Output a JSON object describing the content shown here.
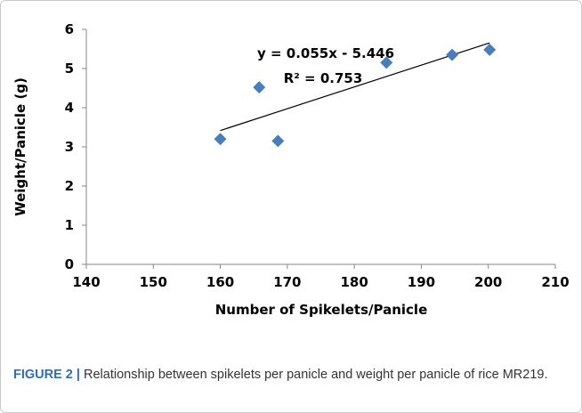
{
  "chart_data": {
    "type": "scatter",
    "x_label": "Number of Spikelets/Panicle",
    "y_label": "Weight/Panicle (g)",
    "x": [
      160,
      165.8,
      168.6,
      184.8,
      194.6,
      200.2
    ],
    "values": [
      3.2,
      4.52,
      3.15,
      5.15,
      5.35,
      5.48
    ],
    "color": "#4a7ebb",
    "trendline": true,
    "annotations": [
      "y = 0.055x - 5.446",
      "R² = 0.753"
    ],
    "xlim": [
      140,
      210
    ],
    "xticks": [
      140,
      150,
      160,
      170,
      180,
      190,
      200,
      210
    ],
    "ylim": [
      0,
      6
    ],
    "yticks": [
      0,
      1,
      2,
      3,
      4,
      5,
      6
    ],
    "grid": false
  },
  "caption": {
    "label": "FIGURE 2 |",
    "text": "Relationship between spikelets per panicle and weight per panicle of rice MR219."
  }
}
